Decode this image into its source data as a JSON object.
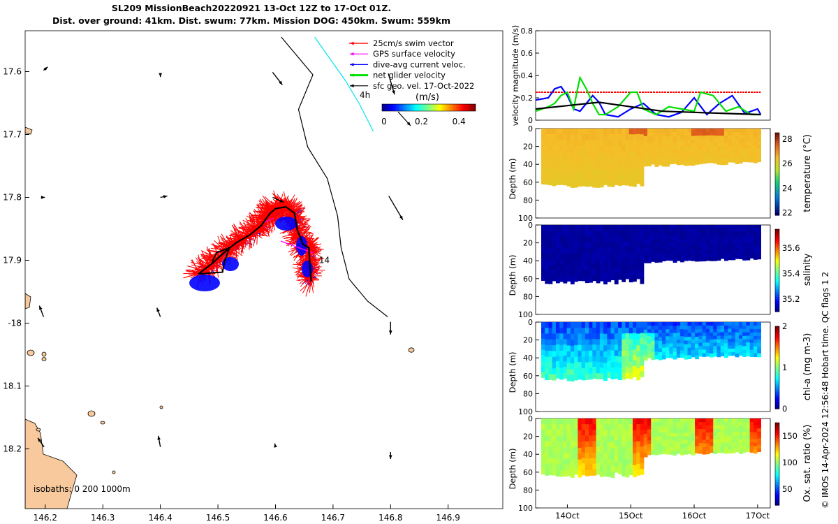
{
  "header": {
    "title_line1": "SL209 MissionBeach20220921 13-Oct 12Z to 17-Oct 01Z.",
    "title_line2": "Dist. over ground: 41km. Dist. swum: 77km. Mission DOG: 450km. Swum: 559km"
  },
  "side_note": "© IMOS 14-Apr-2024 12:56:48 Hobart time. QC flags 1  2",
  "colors": {
    "swim_vector": "#ff0000",
    "gps_velocity": "#ff00ff",
    "dive_avg_current": "#0000ff",
    "net_glider_velocity": "#00e000",
    "sfc_geo_vel": "#000000",
    "land": "#f7c99c",
    "isobath_1000": "#00e5ee",
    "isobath_200": "#000000"
  },
  "chart_data": [
    {
      "type": "scatter",
      "id": "map",
      "xlim": [
        146.165,
        146.995
      ],
      "ylim": [
        -18.295,
        -17.535
      ],
      "x_ticks": [
        146.2,
        146.3,
        146.4,
        146.5,
        146.6,
        146.7,
        146.8,
        146.9
      ],
      "x_tick_labels": [
        "146.2",
        "146.3",
        "146.4",
        "146.5",
        "146.6",
        "146.7",
        "146.8",
        "146.9"
      ],
      "y_ticks": [
        -17.6,
        -17.7,
        -17.8,
        -17.9,
        -18.0,
        -18.1,
        -18.2
      ],
      "y_tick_labels": [
        "17.6",
        "17.7",
        "17.8",
        "17.9",
        "-18",
        "18.1",
        "18.2"
      ],
      "legend": {
        "position": "top-right",
        "entries": [
          "25cm/s swim vector",
          "GPS surface velocity",
          "dive-avg current veloc.",
          "net glider velocity",
          "sfc geo. vel. 17-Oct-2022"
        ]
      },
      "scale_label": "4h",
      "colorbar": {
        "label": "(m/s)",
        "ticks": [
          0,
          0.2,
          0.4
        ],
        "tick_labels": [
          "0",
          "0.2",
          "0.4"
        ],
        "range": [
          0,
          0.5
        ]
      },
      "isobaths_label": "isobaths: 0   200  1000m",
      "track_label": "14",
      "track": [
        [
          146.466,
          -17.922
        ],
        [
          146.49,
          -17.905
        ],
        [
          146.513,
          -17.886
        ],
        [
          146.532,
          -17.872
        ],
        [
          146.555,
          -17.86
        ],
        [
          146.575,
          -17.845
        ],
        [
          146.59,
          -17.826
        ],
        [
          146.6,
          -17.818
        ],
        [
          146.618,
          -17.815
        ],
        [
          146.633,
          -17.825
        ],
        [
          146.638,
          -17.852
        ],
        [
          146.648,
          -17.875
        ],
        [
          146.658,
          -17.88
        ],
        [
          146.66,
          -17.91
        ],
        [
          146.662,
          -17.934
        ]
      ],
      "return_loop": [
        [
          146.466,
          -17.922
        ],
        [
          146.49,
          -17.92
        ],
        [
          146.508,
          -17.919
        ],
        [
          146.512,
          -17.9
        ],
        [
          146.52,
          -17.88
        ],
        [
          146.498,
          -17.888
        ],
        [
          146.49,
          -17.902
        ]
      ],
      "geo_arrows": [
        {
          "lon": 146.197,
          "lat": -17.598,
          "u": 0.06,
          "v": 0.05
        },
        {
          "lon": 146.4,
          "lat": -17.603,
          "u": 0.0,
          "v": -0.05
        },
        {
          "lon": 146.595,
          "lat": -17.601,
          "u": 0.14,
          "v": -0.18
        },
        {
          "lon": 146.796,
          "lat": -17.603,
          "u": 0.09,
          "v": -0.3
        },
        {
          "lon": 146.197,
          "lat": -17.8,
          "u": 0.02,
          "v": 0.0
        },
        {
          "lon": 146.4,
          "lat": -17.8,
          "u": 0.1,
          "v": 0.02
        },
        {
          "lon": 146.595,
          "lat": -17.8,
          "u": 0.16,
          "v": -0.07
        },
        {
          "lon": 146.797,
          "lat": -17.798,
          "u": 0.2,
          "v": -0.34
        },
        {
          "lon": 146.197,
          "lat": -17.99,
          "u": -0.06,
          "v": 0.16
        },
        {
          "lon": 146.4,
          "lat": -17.99,
          "u": -0.05,
          "v": 0.13
        },
        {
          "lon": 146.8,
          "lat": -17.998,
          "u": 0.0,
          "v": -0.18
        },
        {
          "lon": 146.198,
          "lat": -18.197,
          "u": -0.09,
          "v": 0.13
        },
        {
          "lon": 146.4,
          "lat": -18.197,
          "u": -0.03,
          "v": 0.16
        },
        {
          "lon": 146.6,
          "lat": -18.197,
          "u": -0.01,
          "v": 0.05
        },
        {
          "lon": 146.8,
          "lat": -18.205,
          "u": 0.0,
          "v": -0.1
        }
      ],
      "isobath_200": [
        [
          146.61,
          -17.545
        ],
        [
          146.665,
          -17.605
        ],
        [
          146.64,
          -17.66
        ],
        [
          146.656,
          -17.72
        ],
        [
          146.69,
          -17.77
        ],
        [
          146.708,
          -17.83
        ],
        [
          146.714,
          -17.88
        ],
        [
          146.728,
          -17.93
        ],
        [
          146.76,
          -17.965
        ],
        [
          146.795,
          -17.99
        ]
      ],
      "isobath_1000": [
        [
          146.668,
          -17.545
        ],
        [
          146.695,
          -17.58
        ],
        [
          146.722,
          -17.615
        ],
        [
          146.745,
          -17.65
        ],
        [
          146.77,
          -17.695
        ]
      ]
    },
    {
      "type": "line",
      "id": "velocity",
      "ylabel": "velocity magnitude (m/s)",
      "ylim": [
        0,
        0.8
      ],
      "y_ticks": [
        0,
        0.2,
        0.4,
        0.6,
        0.8
      ],
      "x_range": [
        13.5,
        17.2
      ],
      "series": [
        {
          "key": "swim",
          "x": [
            13.5,
            17.05
          ],
          "values": [
            0.25,
            0.25
          ]
        },
        {
          "key": "dive_avg",
          "x": [
            13.5,
            13.7,
            13.8,
            13.9,
            14.0,
            14.1,
            14.2,
            14.3,
            14.4,
            14.5,
            14.6,
            14.8,
            15.0,
            15.2,
            15.4,
            15.6,
            15.8,
            16.0,
            16.2,
            16.4,
            16.6,
            16.8,
            17.0,
            17.05
          ],
          "values": [
            0.18,
            0.2,
            0.28,
            0.3,
            0.22,
            0.1,
            0.08,
            0.15,
            0.22,
            0.16,
            0.05,
            0.03,
            0.1,
            0.15,
            0.05,
            0.03,
            0.07,
            0.2,
            0.05,
            0.15,
            0.22,
            0.06,
            0.1,
            0.05
          ]
        },
        {
          "key": "net",
          "x": [
            13.5,
            13.6,
            13.7,
            13.8,
            13.9,
            14.0,
            14.1,
            14.15,
            14.2,
            14.3,
            14.4,
            14.5,
            14.6,
            14.8,
            15.0,
            15.1,
            15.2,
            15.4,
            15.6,
            15.8,
            16.0,
            16.1,
            16.3,
            16.5,
            16.7,
            16.9,
            17.05
          ],
          "values": [
            0.08,
            0.1,
            0.12,
            0.15,
            0.22,
            0.25,
            0.1,
            0.25,
            0.38,
            0.28,
            0.15,
            0.05,
            0.05,
            0.12,
            0.25,
            0.25,
            0.1,
            0.05,
            0.12,
            0.1,
            0.08,
            0.25,
            0.22,
            0.08,
            0.12,
            0.05,
            0.05
          ]
        },
        {
          "key": "geo",
          "x": [
            13.5,
            14.0,
            14.5,
            15.0,
            15.5,
            16.0,
            16.5,
            17.05
          ],
          "values": [
            0.1,
            0.13,
            0.16,
            0.12,
            0.08,
            0.07,
            0.06,
            0.05
          ]
        }
      ]
    },
    {
      "type": "heatmap",
      "id": "temperature",
      "ylabel": "Depth (m)",
      "clabel": "temperature (°C)",
      "ylim": [
        0,
        100
      ],
      "y_ticks": [
        0,
        20,
        40,
        60,
        80,
        100
      ],
      "clim": [
        21.8,
        28.5
      ],
      "c_ticks": [
        22,
        24,
        26,
        28
      ],
      "colormap": "thermal",
      "base_value": 26.5,
      "x_range": [
        13.5,
        17.2
      ]
    },
    {
      "type": "heatmap",
      "id": "salinity",
      "ylabel": "Depth (m)",
      "clabel": "salinity",
      "ylim": [
        0,
        100
      ],
      "y_ticks": [
        0,
        20,
        40,
        60,
        80,
        100
      ],
      "clim": [
        35.1,
        35.75
      ],
      "c_ticks": [
        35.2,
        35.4,
        35.6
      ],
      "colormap": "haline",
      "base_value": 35.1,
      "x_range": [
        13.5,
        17.2
      ]
    },
    {
      "type": "heatmap",
      "id": "chla",
      "ylabel": "Depth (m)",
      "clabel": "chl-a (mg m-3)",
      "ylim": [
        0,
        100
      ],
      "y_ticks": [
        0,
        20,
        40,
        60,
        80,
        100
      ],
      "clim": [
        0,
        2
      ],
      "c_ticks": [
        0,
        1,
        2
      ],
      "colormap": "jet",
      "base_value": 0.45,
      "x_range": [
        13.5,
        17.2
      ]
    },
    {
      "type": "heatmap",
      "id": "oxygen",
      "ylabel": "Depth (m)",
      "clabel": "Ox. sat. ratio (%)",
      "ylim": [
        0,
        100
      ],
      "y_ticks": [
        0,
        20,
        40,
        60,
        80,
        100
      ],
      "clim": [
        20,
        175
      ],
      "c_ticks": [
        50,
        100,
        150
      ],
      "colormap": "jet",
      "base_value": 105,
      "x_range": [
        13.5,
        17.2
      ],
      "x_ticks": [
        14,
        15,
        16,
        17
      ],
      "x_tick_labels": [
        "14Oct",
        "15Oct",
        "16Oct",
        "17Oct"
      ]
    }
  ]
}
